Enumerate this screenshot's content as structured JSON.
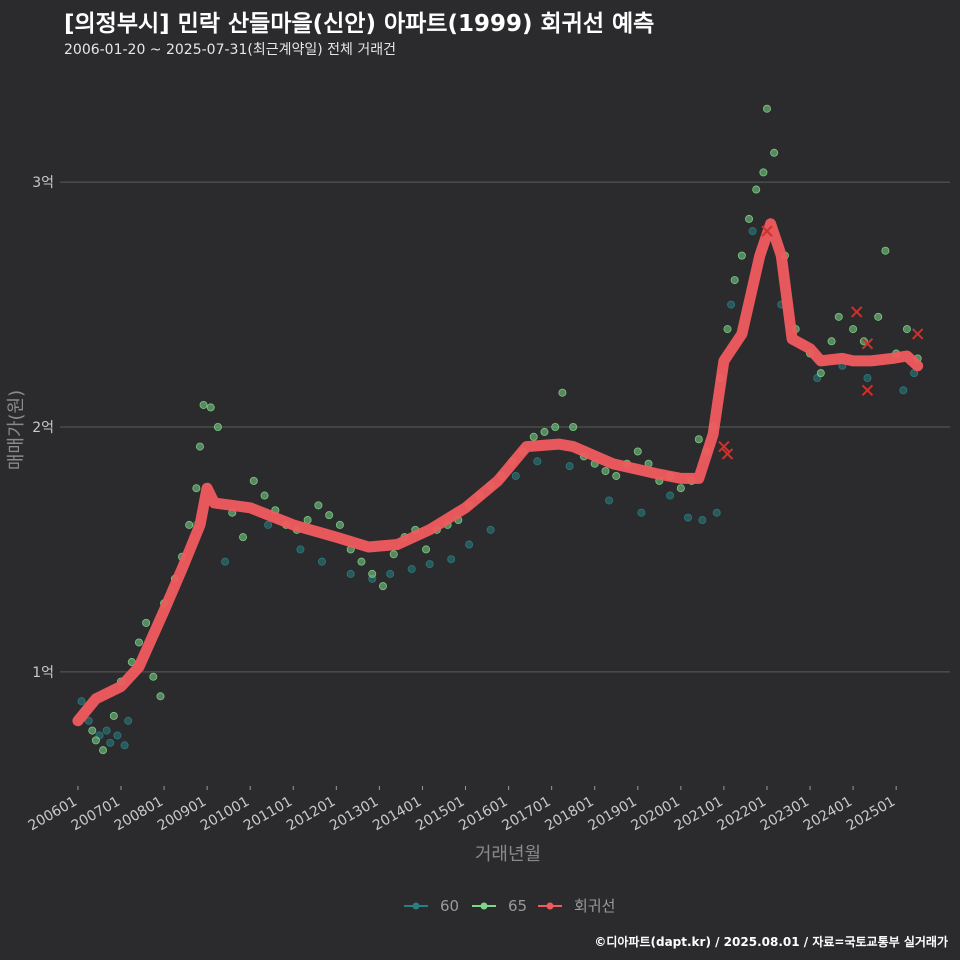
{
  "title": "[의정부시] 민락 산들마을(신안) 아파트(1999) 회귀선 예측",
  "subtitle": "2006-01-20 ~ 2025-07-31(최근계약일) 전체 거래건",
  "credit": "©디아파트(dapt.kr) / 2025.08.01 / 자료=국토교통부 실거래가",
  "colors": {
    "background": "#2b2a2d",
    "series_60": "#2a7f83",
    "series_65": "#7ed68a",
    "regression": "#f05b5e",
    "outlier": "#d0312d"
  },
  "chart_data": {
    "type": "scatter",
    "xlabel": "거래년월",
    "ylabel": "매매가(원)",
    "x_range": [
      "2005-08",
      "2026-04"
    ],
    "ylim": [
      55000000,
      345000000
    ],
    "y_ticks": [
      {
        "value": 100000000,
        "label": "1억"
      },
      {
        "value": 200000000,
        "label": "2억"
      },
      {
        "value": 300000000,
        "label": "3억"
      }
    ],
    "x_ticks": [
      "200601",
      "200701",
      "200801",
      "200901",
      "201001",
      "201101",
      "201201",
      "201301",
      "201401",
      "201501",
      "201601",
      "201701",
      "201801",
      "201901",
      "202001",
      "202101",
      "202201",
      "202301",
      "202401",
      "202501"
    ],
    "legend": [
      {
        "name": "60",
        "color": "#2a7f83"
      },
      {
        "name": "65",
        "color": "#7ed68a"
      },
      {
        "name": "회귀선",
        "color": "#f05b5e"
      }
    ],
    "legend_position": "bottom",
    "grid": true,
    "series": [
      {
        "name": "60",
        "type": "scatter",
        "points": [
          [
            "2006-02",
            88000000
          ],
          [
            "2006-04",
            80000000
          ],
          [
            "2006-07",
            74000000
          ],
          [
            "2006-09",
            76000000
          ],
          [
            "2006-10",
            71000000
          ],
          [
            "2006-12",
            74000000
          ],
          [
            "2007-02",
            70000000
          ],
          [
            "2007-03",
            80000000
          ],
          [
            "2008-03",
            133000000
          ],
          [
            "2008-10",
            160000000
          ],
          [
            "2009-06",
            145000000
          ],
          [
            "2010-06",
            160000000
          ],
          [
            "2011-03",
            150000000
          ],
          [
            "2011-09",
            145000000
          ],
          [
            "2012-05",
            140000000
          ],
          [
            "2012-11",
            138000000
          ],
          [
            "2013-04",
            140000000
          ],
          [
            "2013-10",
            142000000
          ],
          [
            "2014-03",
            144000000
          ],
          [
            "2014-09",
            146000000
          ],
          [
            "2015-02",
            152000000
          ],
          [
            "2015-08",
            158000000
          ],
          [
            "2016-03",
            180000000
          ],
          [
            "2016-09",
            186000000
          ],
          [
            "2017-06",
            184000000
          ],
          [
            "2018-05",
            170000000
          ],
          [
            "2019-02",
            165000000
          ],
          [
            "2019-10",
            172000000
          ],
          [
            "2020-03",
            163000000
          ],
          [
            "2020-07",
            162000000
          ],
          [
            "2020-11",
            165000000
          ],
          [
            "2021-03",
            250000000
          ],
          [
            "2021-09",
            280000000
          ],
          [
            "2022-05",
            250000000
          ],
          [
            "2023-03",
            220000000
          ],
          [
            "2023-10",
            225000000
          ],
          [
            "2024-05",
            220000000
          ],
          [
            "2025-03",
            215000000
          ],
          [
            "2025-06",
            222000000
          ]
        ]
      },
      {
        "name": "65",
        "type": "scatter",
        "points": [
          [
            "2006-05",
            76000000
          ],
          [
            "2006-06",
            72000000
          ],
          [
            "2006-08",
            68000000
          ],
          [
            "2006-11",
            82000000
          ],
          [
            "2007-01",
            96000000
          ],
          [
            "2007-04",
            104000000
          ],
          [
            "2007-06",
            112000000
          ],
          [
            "2007-08",
            120000000
          ],
          [
            "2007-10",
            98000000
          ],
          [
            "2007-12",
            90000000
          ],
          [
            "2008-01",
            128000000
          ],
          [
            "2008-04",
            138000000
          ],
          [
            "2008-06",
            147000000
          ],
          [
            "2008-08",
            160000000
          ],
          [
            "2008-10",
            175000000
          ],
          [
            "2008-11",
            192000000
          ],
          [
            "2008-12",
            209000000
          ],
          [
            "2009-02",
            208000000
          ],
          [
            "2009-04",
            200000000
          ],
          [
            "2009-08",
            165000000
          ],
          [
            "2009-11",
            155000000
          ],
          [
            "2010-02",
            178000000
          ],
          [
            "2010-05",
            172000000
          ],
          [
            "2010-08",
            166000000
          ],
          [
            "2010-11",
            160000000
          ],
          [
            "2011-02",
            158000000
          ],
          [
            "2011-05",
            162000000
          ],
          [
            "2011-08",
            168000000
          ],
          [
            "2011-11",
            164000000
          ],
          [
            "2012-02",
            160000000
          ],
          [
            "2012-05",
            150000000
          ],
          [
            "2012-08",
            145000000
          ],
          [
            "2012-11",
            140000000
          ],
          [
            "2013-02",
            135000000
          ],
          [
            "2013-05",
            148000000
          ],
          [
            "2013-08",
            155000000
          ],
          [
            "2013-11",
            158000000
          ],
          [
            "2014-02",
            150000000
          ],
          [
            "2014-05",
            158000000
          ],
          [
            "2014-08",
            160000000
          ],
          [
            "2014-11",
            162000000
          ],
          [
            "2015-02",
            168000000
          ],
          [
            "2015-05",
            172000000
          ],
          [
            "2015-08",
            176000000
          ],
          [
            "2015-11",
            180000000
          ],
          [
            "2016-02",
            186000000
          ],
          [
            "2016-05",
            190000000
          ],
          [
            "2016-08",
            196000000
          ],
          [
            "2016-11",
            198000000
          ],
          [
            "2017-02",
            200000000
          ],
          [
            "2017-04",
            214000000
          ],
          [
            "2017-07",
            200000000
          ],
          [
            "2017-10",
            188000000
          ],
          [
            "2018-01",
            185000000
          ],
          [
            "2018-04",
            182000000
          ],
          [
            "2018-07",
            180000000
          ],
          [
            "2018-10",
            185000000
          ],
          [
            "2019-01",
            190000000
          ],
          [
            "2019-04",
            185000000
          ],
          [
            "2019-07",
            178000000
          ],
          [
            "2019-10",
            180000000
          ],
          [
            "2020-01",
            175000000
          ],
          [
            "2020-04",
            178000000
          ],
          [
            "2020-06",
            195000000
          ],
          [
            "2020-08",
            190000000
          ],
          [
            "2020-10",
            200000000
          ],
          [
            "2020-12",
            220000000
          ],
          [
            "2021-02",
            240000000
          ],
          [
            "2021-04",
            260000000
          ],
          [
            "2021-06",
            270000000
          ],
          [
            "2021-08",
            285000000
          ],
          [
            "2021-10",
            297000000
          ],
          [
            "2021-12",
            304000000
          ],
          [
            "2022-01",
            330000000
          ],
          [
            "2022-03",
            312000000
          ],
          [
            "2022-06",
            270000000
          ],
          [
            "2022-09",
            240000000
          ],
          [
            "2023-01",
            230000000
          ],
          [
            "2023-04",
            222000000
          ],
          [
            "2023-07",
            235000000
          ],
          [
            "2023-09",
            245000000
          ],
          [
            "2024-01",
            240000000
          ],
          [
            "2024-04",
            235000000
          ],
          [
            "2024-08",
            245000000
          ],
          [
            "2024-10",
            272000000
          ],
          [
            "2025-01",
            230000000
          ],
          [
            "2025-04",
            240000000
          ],
          [
            "2025-07",
            228000000
          ]
        ]
      },
      {
        "name": "회귀선",
        "type": "line",
        "points": [
          [
            "2006-01",
            80000000
          ],
          [
            "2006-06",
            89000000
          ],
          [
            "2007-01",
            94000000
          ],
          [
            "2007-06",
            102000000
          ],
          [
            "2008-01",
            125000000
          ],
          [
            "2008-06",
            142000000
          ],
          [
            "2008-11",
            160000000
          ],
          [
            "2009-01",
            175000000
          ],
          [
            "2009-03",
            169000000
          ],
          [
            "2010-01",
            167000000
          ],
          [
            "2011-01",
            160000000
          ],
          [
            "2012-01",
            155000000
          ],
          [
            "2012-10",
            151000000
          ],
          [
            "2013-06",
            152000000
          ],
          [
            "2014-03",
            158000000
          ],
          [
            "2015-01",
            167000000
          ],
          [
            "2015-10",
            178000000
          ],
          [
            "2016-06",
            192000000
          ],
          [
            "2017-03",
            193000000
          ],
          [
            "2017-07",
            192000000
          ],
          [
            "2018-06",
            185000000
          ],
          [
            "2019-06",
            181000000
          ],
          [
            "2020-01",
            179000000
          ],
          [
            "2020-06",
            179000000
          ],
          [
            "2020-10",
            197000000
          ],
          [
            "2021-01",
            227000000
          ],
          [
            "2021-06",
            238000000
          ],
          [
            "2021-11",
            270000000
          ],
          [
            "2022-02",
            283000000
          ],
          [
            "2022-05",
            270000000
          ],
          [
            "2022-08",
            236000000
          ],
          [
            "2023-01",
            232000000
          ],
          [
            "2023-04",
            227000000
          ],
          [
            "2023-10",
            228000000
          ],
          [
            "2024-01",
            227000000
          ],
          [
            "2024-06",
            227000000
          ],
          [
            "2024-12",
            228000000
          ],
          [
            "2025-04",
            229000000
          ],
          [
            "2025-07",
            225000000
          ]
        ]
      }
    ],
    "outliers": [
      [
        "2021-01",
        192000000
      ],
      [
        "2021-02",
        189000000
      ],
      [
        "2022-01",
        280000000
      ],
      [
        "2024-02",
        247000000
      ],
      [
        "2024-05",
        234000000
      ],
      [
        "2024-05",
        215000000
      ],
      [
        "2025-07",
        238000000
      ]
    ]
  }
}
